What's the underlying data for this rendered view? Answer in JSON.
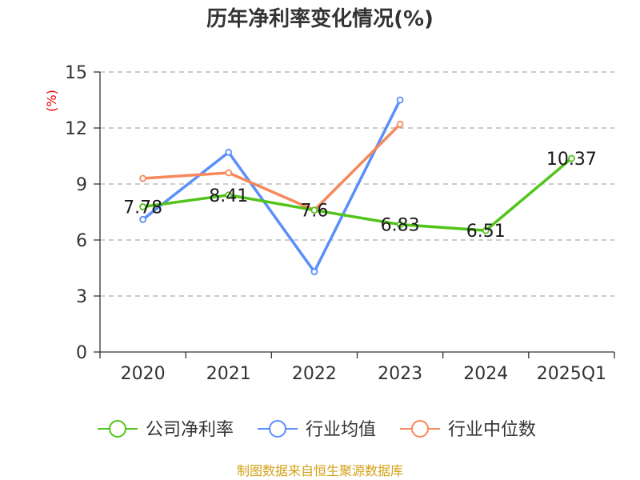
{
  "chart_data": {
    "type": "line",
    "title": "历年净利率变化情况(%)",
    "y_unit": "(%)",
    "categories": [
      "2020",
      "2021",
      "2022",
      "2023",
      "2024",
      "2025Q1"
    ],
    "ylim": [
      0,
      15
    ],
    "yticks": [
      0,
      3,
      6,
      9,
      12,
      15
    ],
    "grid": true,
    "legend_position": "bottom",
    "series": [
      {
        "name": "公司净利率",
        "color": "#52c41a",
        "values": [
          7.78,
          8.41,
          7.6,
          6.83,
          6.51,
          10.37
        ],
        "labels": [
          "7.78",
          "8.41",
          "7.6",
          "6.83",
          "6.51",
          "10.37"
        ]
      },
      {
        "name": "行业均值",
        "color": "#5b8ff9",
        "values": [
          7.1,
          10.7,
          4.3,
          13.5,
          null,
          null
        ],
        "labels": []
      },
      {
        "name": "行业中位数",
        "color": "#f6895b",
        "values": [
          9.3,
          9.6,
          7.6,
          12.2,
          null,
          null
        ],
        "labels": []
      }
    ]
  },
  "unit_color": "#e60000",
  "source_text": "制图数据来自恒生聚源数据库",
  "source_color": "#d4a017"
}
